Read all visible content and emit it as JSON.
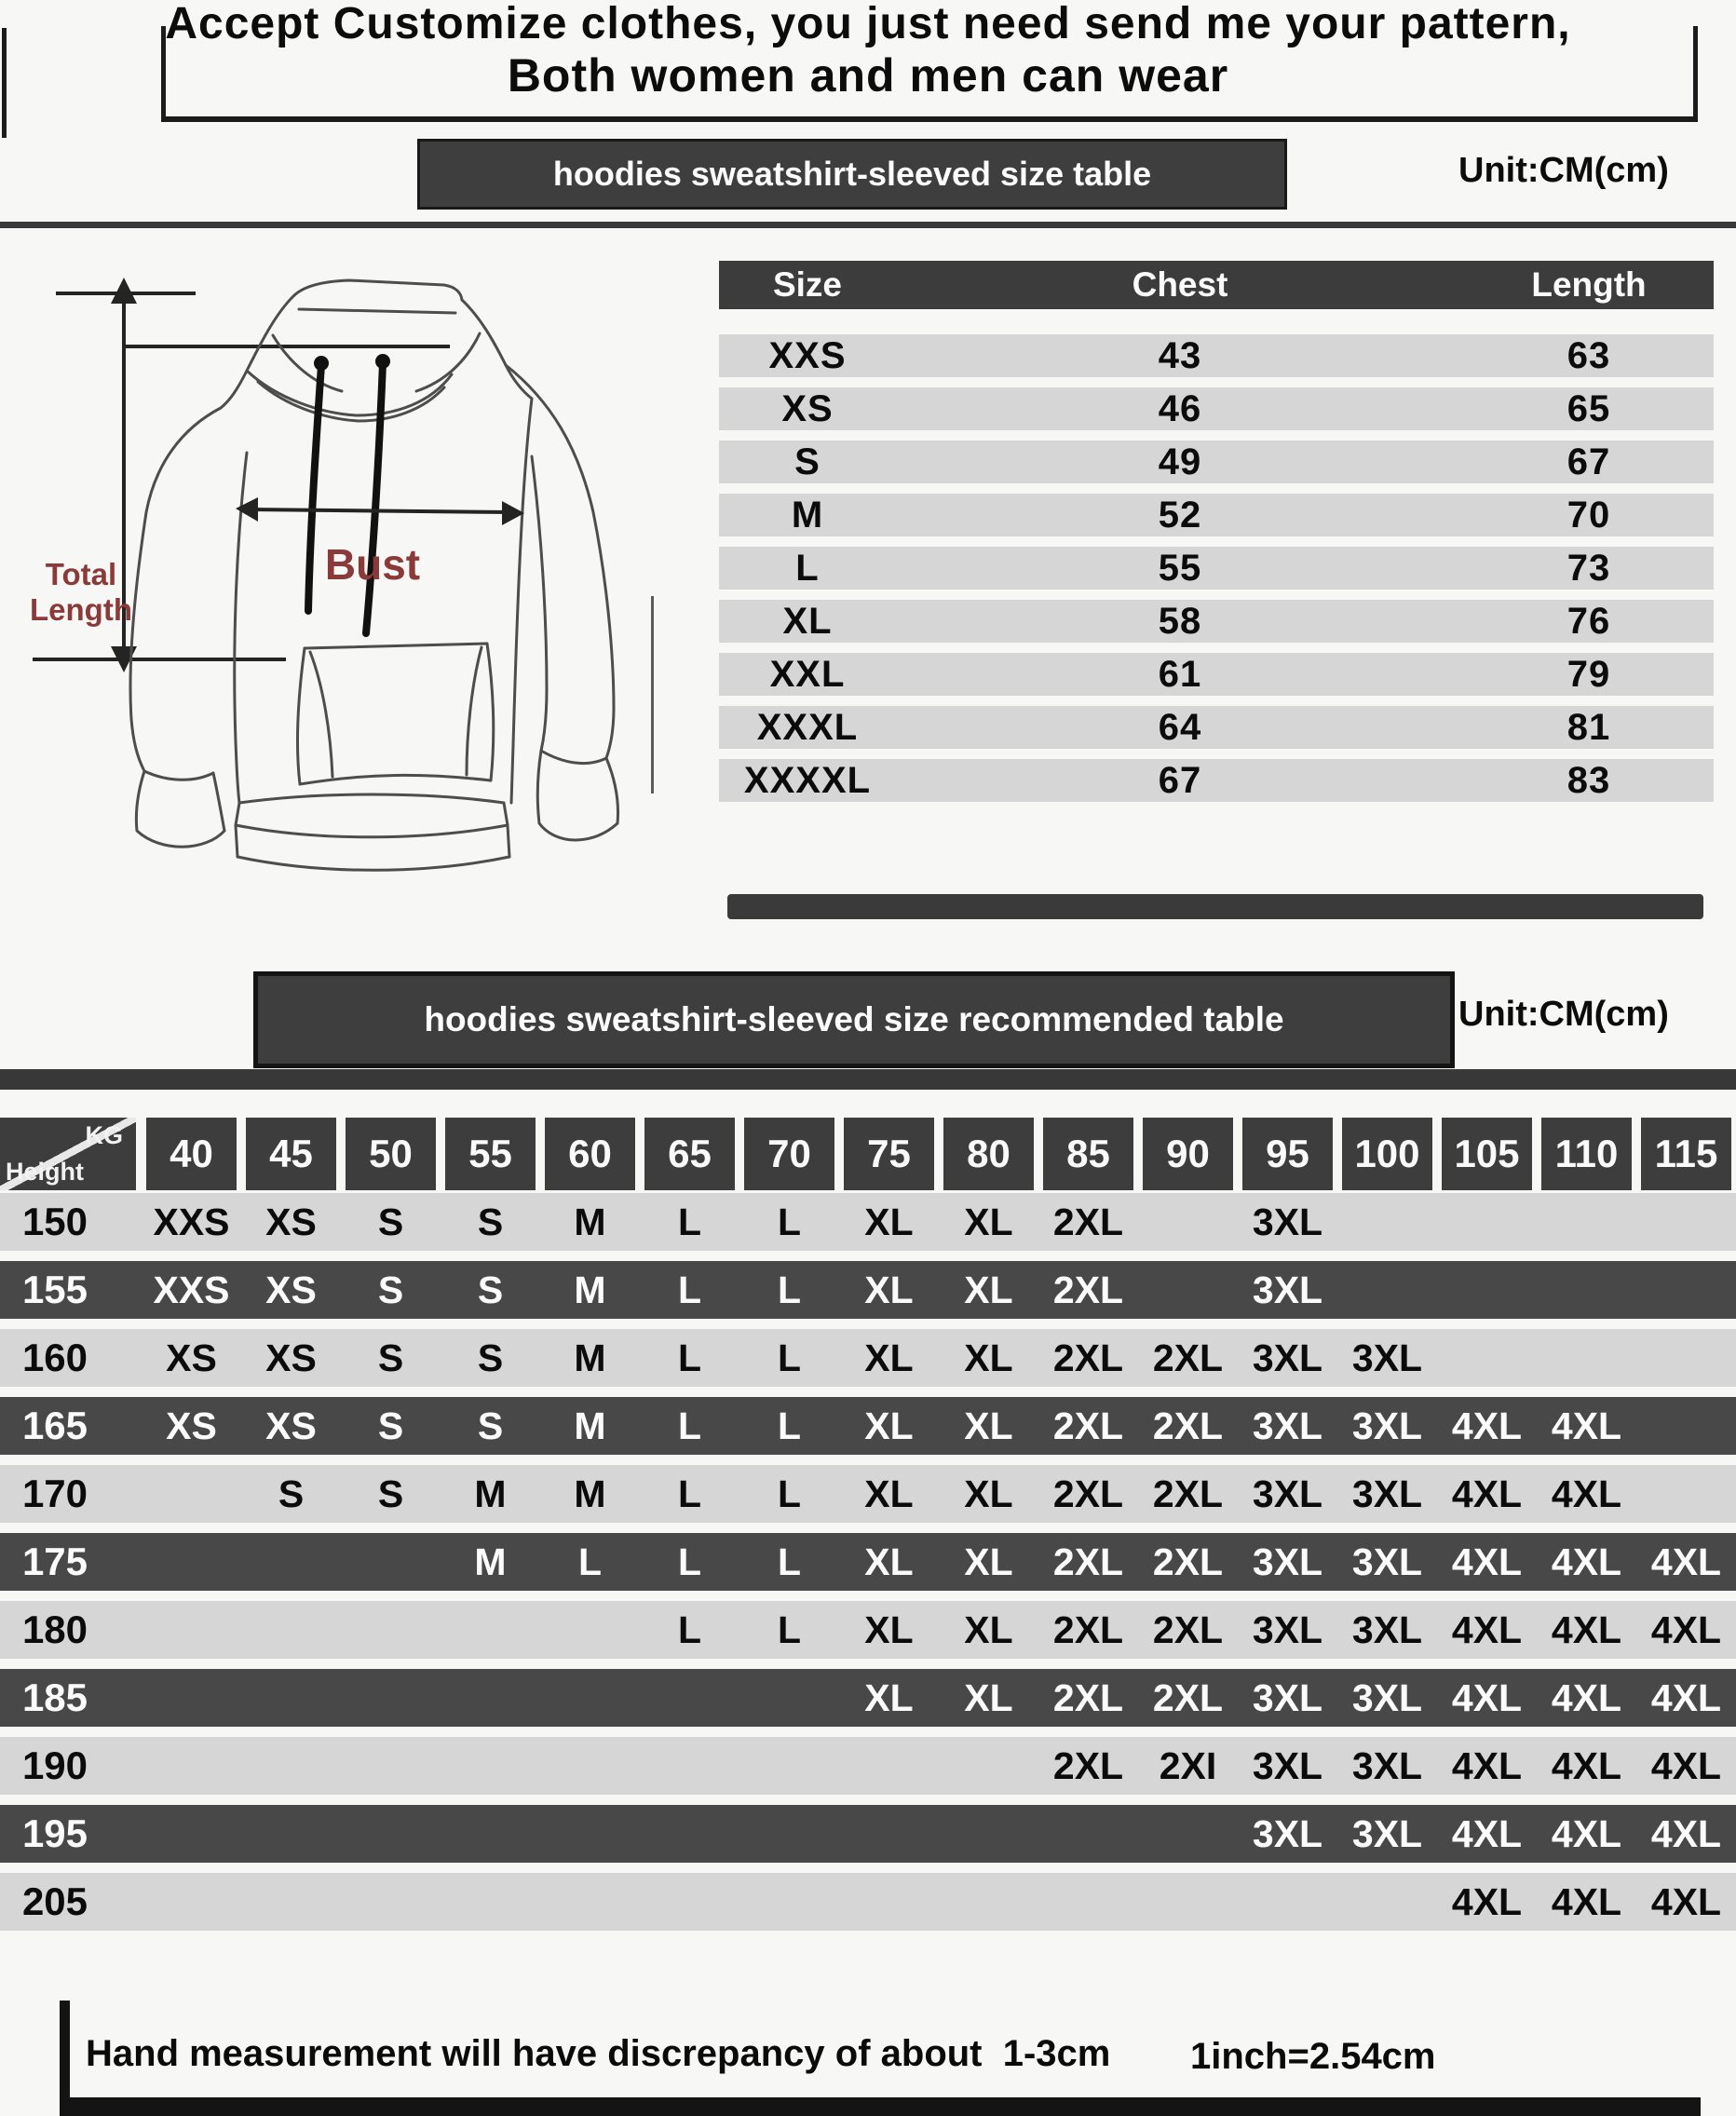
{
  "header": {
    "line1": "Accept Customize clothes, you just need send me your pattern,",
    "line2": "Both women and men can wear"
  },
  "section1": {
    "banner": "hoodies sweatshirt-sleeved size  table",
    "unit": "Unit:CM(cm)"
  },
  "diagram": {
    "bust_label": "Bust",
    "total_label_line1": "Total",
    "total_label_line2": "Length"
  },
  "size_table": {
    "headers": [
      "Size",
      "Chest",
      "Length"
    ],
    "rows": [
      [
        "XXS",
        "43",
        "63"
      ],
      [
        "XS",
        "46",
        "65"
      ],
      [
        "S",
        "49",
        "67"
      ],
      [
        "M",
        "52",
        "70"
      ],
      [
        "L",
        "55",
        "73"
      ],
      [
        "XL",
        "58",
        "76"
      ],
      [
        "XXL",
        "61",
        "79"
      ],
      [
        "XXXL",
        "64",
        "81"
      ],
      [
        "XXXXL",
        "67",
        "83"
      ]
    ]
  },
  "section2": {
    "banner": "hoodies sweatshirt-sleeved size recommended table",
    "unit": "Unit:CM(cm)"
  },
  "reco_table": {
    "corner_top": "KG",
    "corner_bottom": "Height",
    "weights": [
      "40",
      "45",
      "50",
      "55",
      "60",
      "65",
      "70",
      "75",
      "80",
      "85",
      "90",
      "95",
      "100",
      "105",
      "110",
      "115"
    ],
    "rows": [
      {
        "height": "150",
        "cells": [
          "XXS",
          "XS",
          "S",
          "S",
          "M",
          "L",
          "L",
          "XL",
          "XL",
          "2XL",
          "",
          "3XL",
          "",
          "",
          "",
          ""
        ]
      },
      {
        "height": "155",
        "cells": [
          "XXS",
          "XS",
          "S",
          "S",
          "M",
          "L",
          "L",
          "XL",
          "XL",
          "2XL",
          "",
          "3XL",
          "",
          "",
          "",
          ""
        ]
      },
      {
        "height": "160",
        "cells": [
          "XS",
          "XS",
          "S",
          "S",
          "M",
          "L",
          "L",
          "XL",
          "XL",
          "2XL",
          "2XL",
          "3XL",
          "3XL",
          "",
          "",
          ""
        ]
      },
      {
        "height": "165",
        "cells": [
          "XS",
          "XS",
          "S",
          "S",
          "M",
          "L",
          "L",
          "XL",
          "XL",
          "2XL",
          "2XL",
          "3XL",
          "3XL",
          "4XL",
          "4XL",
          ""
        ]
      },
      {
        "height": "170",
        "cells": [
          "",
          "S",
          "S",
          "M",
          "M",
          "L",
          "L",
          "XL",
          "XL",
          "2XL",
          "2XL",
          "3XL",
          "3XL",
          "4XL",
          "4XL",
          ""
        ]
      },
      {
        "height": "175",
        "cells": [
          "",
          "",
          "",
          "M",
          "L",
          "L",
          "L",
          "XL",
          "XL",
          "2XL",
          "2XL",
          "3XL",
          "3XL",
          "4XL",
          "4XL",
          "4XL"
        ]
      },
      {
        "height": "180",
        "cells": [
          "",
          "",
          "",
          "",
          "",
          "L",
          "L",
          "XL",
          "XL",
          "2XL",
          "2XL",
          "3XL",
          "3XL",
          "4XL",
          "4XL",
          "4XL"
        ]
      },
      {
        "height": "185",
        "cells": [
          "",
          "",
          "",
          "",
          "",
          "",
          "",
          "XL",
          "XL",
          "2XL",
          "2XL",
          "3XL",
          "3XL",
          "4XL",
          "4XL",
          "4XL"
        ]
      },
      {
        "height": "190",
        "cells": [
          "",
          "",
          "",
          "",
          "",
          "",
          "",
          "",
          "",
          "2XL",
          "2XI",
          "3XL",
          "3XL",
          "4XL",
          "4XL",
          "4XL"
        ]
      },
      {
        "height": "195",
        "cells": [
          "",
          "",
          "",
          "",
          "",
          "",
          "",
          "",
          "",
          "",
          "",
          "3XL",
          "3XL",
          "4XL",
          "4XL",
          "4XL"
        ]
      },
      {
        "height": "205",
        "cells": [
          "",
          "",
          "",
          "",
          "",
          "",
          "",
          "",
          "",
          "",
          "",
          "",
          "",
          "4XL",
          "4XL",
          "4XL"
        ]
      }
    ]
  },
  "footer": {
    "note": "Hand measurement will have discrepancy of about  1-3cm",
    "conversion": "1inch=2.54cm"
  },
  "colors": {
    "maroon": "#8b3a3a",
    "banner_bg": "#3e3e3e",
    "dark_row": "#484848",
    "light_row": "#d6d6d6"
  }
}
